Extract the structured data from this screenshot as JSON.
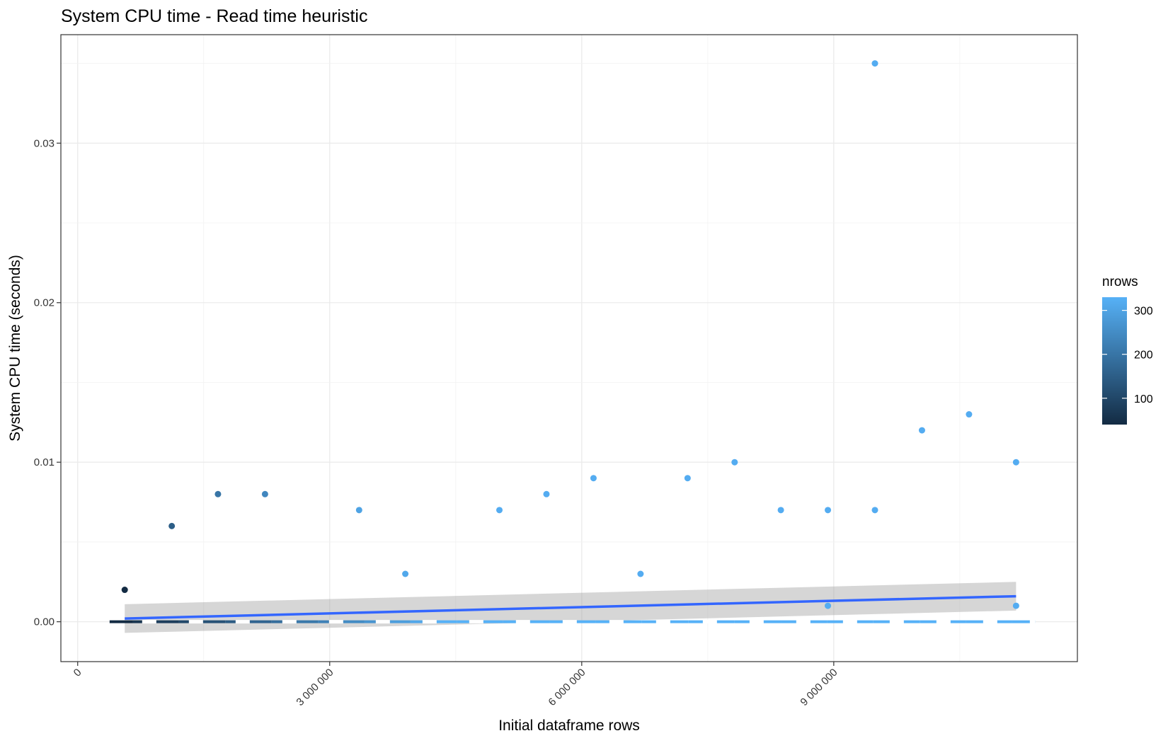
{
  "chart_data": {
    "type": "scatter",
    "title": "System CPU time - Read time heuristic",
    "xlabel": "Initial dataframe rows",
    "ylabel": "System CPU time (seconds)",
    "xlim": [
      -200000,
      11900000
    ],
    "ylim": [
      -0.0025,
      0.0368
    ],
    "x_ticks": [
      {
        "value": 0,
        "label": "0"
      },
      {
        "value": 3000000,
        "label": "3 000 000"
      },
      {
        "value": 6000000,
        "label": "6 000 000"
      },
      {
        "value": 9000000,
        "label": "9 000 000"
      }
    ],
    "y_ticks": [
      {
        "value": 0.0,
        "label": "0.00"
      },
      {
        "value": 0.01,
        "label": "0.01"
      },
      {
        "value": 0.02,
        "label": "0.02"
      },
      {
        "value": 0.03,
        "label": "0.03"
      }
    ],
    "grid": true,
    "points": [
      {
        "x": 560000,
        "y": 0.002,
        "nrows": 40
      },
      {
        "x": 1120000,
        "y": 0.006,
        "nrows": 150
      },
      {
        "x": 1670000,
        "y": 0.008,
        "nrows": 200
      },
      {
        "x": 2230000,
        "y": 0.008,
        "nrows": 240
      },
      {
        "x": 3350000,
        "y": 0.007,
        "nrows": 300
      },
      {
        "x": 3900000,
        "y": 0.003,
        "nrows": 310
      },
      {
        "x": 5020000,
        "y": 0.007,
        "nrows": 320
      },
      {
        "x": 5580000,
        "y": 0.008,
        "nrows": 320
      },
      {
        "x": 6140000,
        "y": 0.009,
        "nrows": 320
      },
      {
        "x": 6700000,
        "y": 0.003,
        "nrows": 320
      },
      {
        "x": 7260000,
        "y": 0.009,
        "nrows": 320
      },
      {
        "x": 7820000,
        "y": 0.01,
        "nrows": 320
      },
      {
        "x": 8370000,
        "y": 0.007,
        "nrows": 320
      },
      {
        "x": 8930000,
        "y": 0.007,
        "nrows": 320
      },
      {
        "x": 8930000,
        "y": 0.001,
        "nrows": 320
      },
      {
        "x": 9490000,
        "y": 0.035,
        "nrows": 320
      },
      {
        "x": 9490000,
        "y": 0.007,
        "nrows": 320
      },
      {
        "x": 10050000,
        "y": 0.012,
        "nrows": 320
      },
      {
        "x": 10610000,
        "y": 0.013,
        "nrows": 320
      },
      {
        "x": 11170000,
        "y": 0.01,
        "nrows": 320
      },
      {
        "x": 11170000,
        "y": 0.001,
        "nrows": 320
      }
    ],
    "smooth": {
      "x": [
        560000,
        11170000
      ],
      "y": [
        0.0002,
        0.0016
      ],
      "ci_lower": [
        -0.0007,
        0.0007
      ],
      "ci_upper": [
        0.0011,
        0.0025
      ],
      "color": "#3366FF"
    },
    "baseline": {
      "x": [
        380000,
        11400000
      ],
      "y": 0,
      "color_start": "#132B43",
      "color_end": "#56B1F7"
    },
    "color_legend": {
      "title": "nrows",
      "min": 40,
      "max": 330,
      "color_low": "#132B43",
      "color_high": "#56B1F7",
      "ticks": [
        {
          "value": 100,
          "label": "100"
        },
        {
          "value": 200,
          "label": "200"
        },
        {
          "value": 300,
          "label": "300"
        }
      ],
      "placement": "right"
    }
  }
}
